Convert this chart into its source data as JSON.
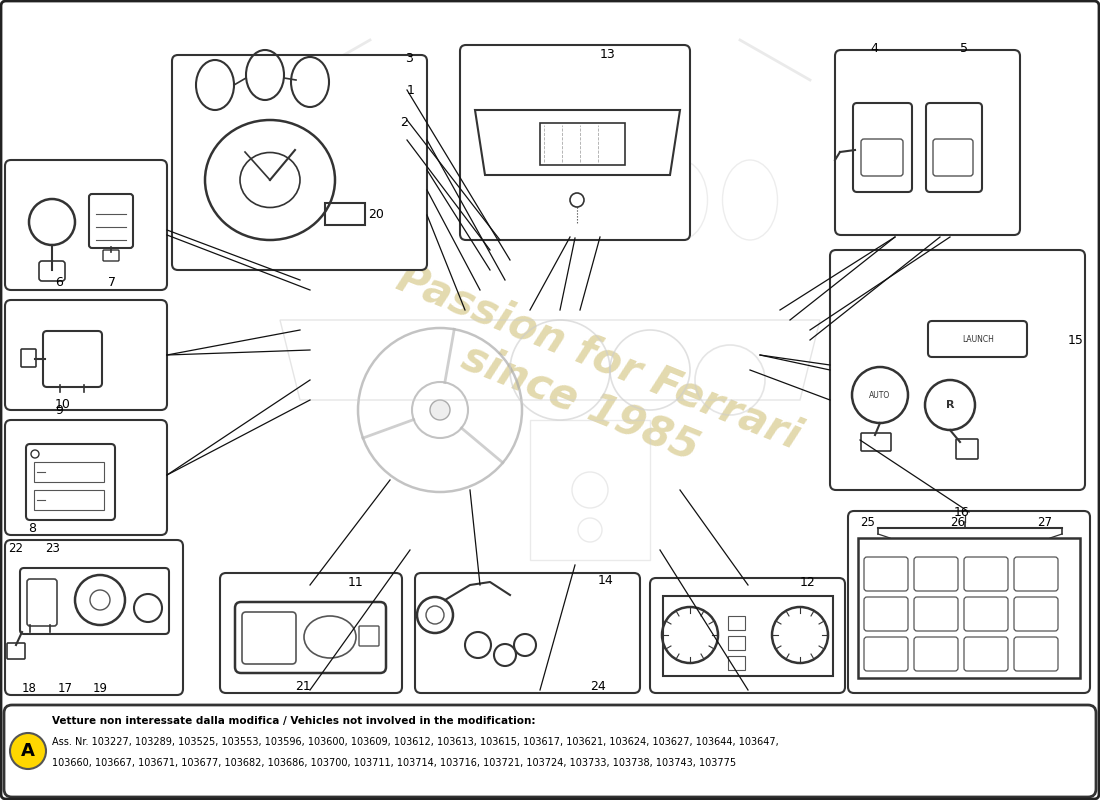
{
  "bg_color": "#ffffff",
  "note_label": "A",
  "note_text_bold": "Vetture non interessate dalla modifica / Vehicles not involved in the modification:",
  "note_line1": "Ass. Nr. 103227, 103289, 103525, 103553, 103596, 103600, 103609, 103612, 103613, 103615, 103617, 103621, 103624, 103627, 103644, 103647,",
  "note_line2": "103660, 103667, 103671, 103677, 103682, 103686, 103700, 103711, 103714, 103716, 103721, 103724, 103733, 103738, 103743, 103775",
  "watermark_color": "#c8b560",
  "box_color": "#333333"
}
